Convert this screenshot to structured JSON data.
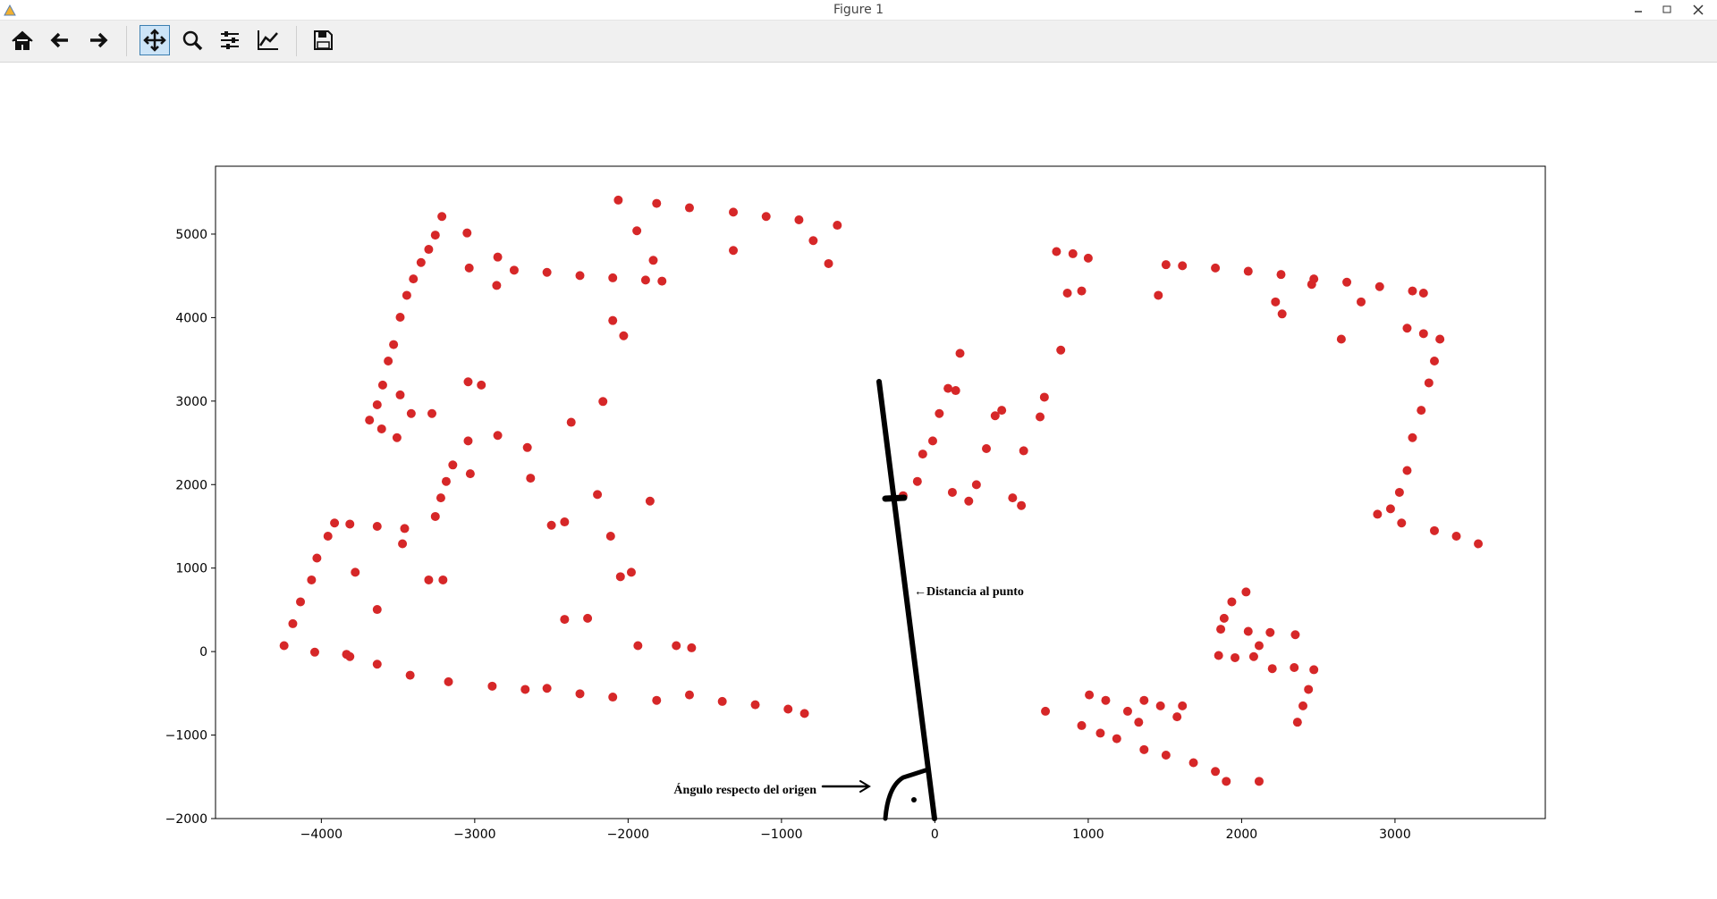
{
  "window_title": "Figure 1",
  "chart_data": {
    "type": "scatter",
    "color": "#d62728",
    "xlim": [
      -4690,
      3980
    ],
    "ylim": [
      -2000,
      5813
    ],
    "xticks": [
      {
        "value": -4000,
        "label": "−4000"
      },
      {
        "value": -3000,
        "label": "−3000"
      },
      {
        "value": -2000,
        "label": "−2000"
      },
      {
        "value": -1000,
        "label": "−1000"
      },
      0,
      1000,
      2000,
      3000
    ],
    "yticks": [
      {
        "value": -2000,
        "label": "−2000"
      },
      {
        "value": -1000,
        "label": "−1000"
      },
      0,
      1000,
      2000,
      3000,
      4000,
      5000
    ],
    "annotations": [
      "←Distancia al punto",
      "Ángulo respecto del origen"
    ],
    "x": [
      -3686,
      -3636,
      -3600,
      -3564,
      -3529,
      -3486,
      -3443,
      -3400,
      -3350,
      -3300,
      -3257,
      -3214,
      -2743,
      -2529,
      -2314,
      -2100,
      -1886,
      -1779,
      -2064,
      -1814,
      -1600,
      -1314,
      -1100,
      -886,
      -636,
      -4243,
      -4186,
      -4136,
      -4064,
      -4029,
      -3957,
      -3914,
      -3814,
      -3636,
      -3457,
      -3814,
      -3636,
      -3421,
      -3171,
      -2886,
      -2671,
      -2529,
      -2314,
      -2100,
      -1814,
      -1600,
      -1386,
      -1171,
      -957,
      -850,
      -3257,
      -3221,
      -3186,
      -3143,
      -4043,
      -3779,
      -3636,
      -3471,
      -3300,
      -3207,
      -3279,
      -3043,
      -3029,
      -3043,
      -2957,
      -2850,
      -2657,
      -2636,
      -2500,
      -2414,
      -2371,
      -2200,
      -2114,
      -2050,
      -1979,
      -2264,
      -2414,
      -1936,
      -1686,
      -1586,
      -1857,
      -2164,
      -2100,
      -2029,
      -3050,
      -3036,
      -2850,
      -2857,
      -1943,
      -1836,
      -1314,
      -793,
      -693,
      -3414,
      -3486,
      -3607,
      -3507,
      -3836,
      -207,
      -114,
      -79,
      -14,
      29,
      86,
      136,
      164,
      114,
      221,
      271,
      336,
      393,
      436,
      507,
      564,
      579,
      686,
      714,
      821,
      864,
      957,
      793,
      1000,
      900,
      1507,
      1614,
      1829,
      2043,
      2257,
      2471,
      2686,
      2900,
      3114,
      3186,
      1457,
      2221,
      2264,
      2779,
      2650,
      2457,
      3079,
      3186,
      3293,
      3257,
      3221,
      3171,
      3114,
      3079,
      3029,
      2971,
      2886,
      3043,
      3257,
      3400,
      3543,
      2029,
      1936,
      1886,
      1864,
      2043,
      2186,
      2350,
      2114,
      2079,
      1850,
      1957,
      2200,
      2343,
      2471,
      2436,
      2400,
      2364,
      1007,
      1114,
      1257,
      1364,
      1471,
      1579,
      1614,
      1186,
      1364,
      1507,
      1686,
      1829,
      1900,
      2114,
      721,
      957,
      1079,
      1329
    ],
    "y": [
      2772,
      2956,
      3192,
      3480,
      3677,
      4004,
      4267,
      4463,
      4660,
      4817,
      4988,
      5211,
      4568,
      4542,
      4503,
      4476,
      4450,
      4437,
      5407,
      5368,
      5315,
      5263,
      5211,
      5171,
      5106,
      71,
      334,
      596,
      858,
      1120,
      1382,
      1540,
      1527,
      1500,
      1474,
      -60,
      -151,
      -283,
      -361,
      -414,
      -453,
      -440,
      -505,
      -545,
      -584,
      -519,
      -597,
      -637,
      -689,
      -741,
      1618,
      1841,
      2038,
      2235,
      -7,
      950,
      504,
      1291,
      858,
      858,
      2851,
      2523,
      2130,
      3231,
      3192,
      2589,
      2444,
      2077,
      1513,
      1553,
      2746,
      1881,
      1382,
      897,
      950,
      399,
      386,
      71,
      71,
      45,
      1802,
      2995,
      3965,
      3782,
      5014,
      4594,
      4725,
      4385,
      5040,
      4686,
      4804,
      4922,
      4647,
      2851,
      3074,
      2667,
      2562,
      -33,
      1867,
      2038,
      2366,
      2523,
      2851,
      3152,
      3126,
      3572,
      1907,
      1802,
      1999,
      2431,
      2824,
      2890,
      1841,
      1749,
      2405,
      2811,
      3047,
      3611,
      4293,
      4319,
      4791,
      4712,
      4765,
      4634,
      4621,
      4594,
      4555,
      4516,
      4463,
      4424,
      4371,
      4319,
      4293,
      4267,
      4188,
      4044,
      4188,
      3742,
      4398,
      3873,
      3808,
      3742,
      3480,
      3218,
      2890,
      2562,
      2169,
      1907,
      1710,
      1645,
      1540,
      1448,
      1382,
      1291,
      714,
      596,
      399,
      268,
      242,
      229,
      202,
      71,
      -60,
      -47,
      -73,
      -204,
      -191,
      -217,
      -453,
      -650,
      -846,
      -519,
      -584,
      -715,
      -584,
      -650,
      -781,
      -650,
      -1043,
      -1174,
      -1240,
      -1331,
      -1436,
      -1554,
      -1554,
      -715,
      -886,
      -977,
      -846
    ]
  }
}
